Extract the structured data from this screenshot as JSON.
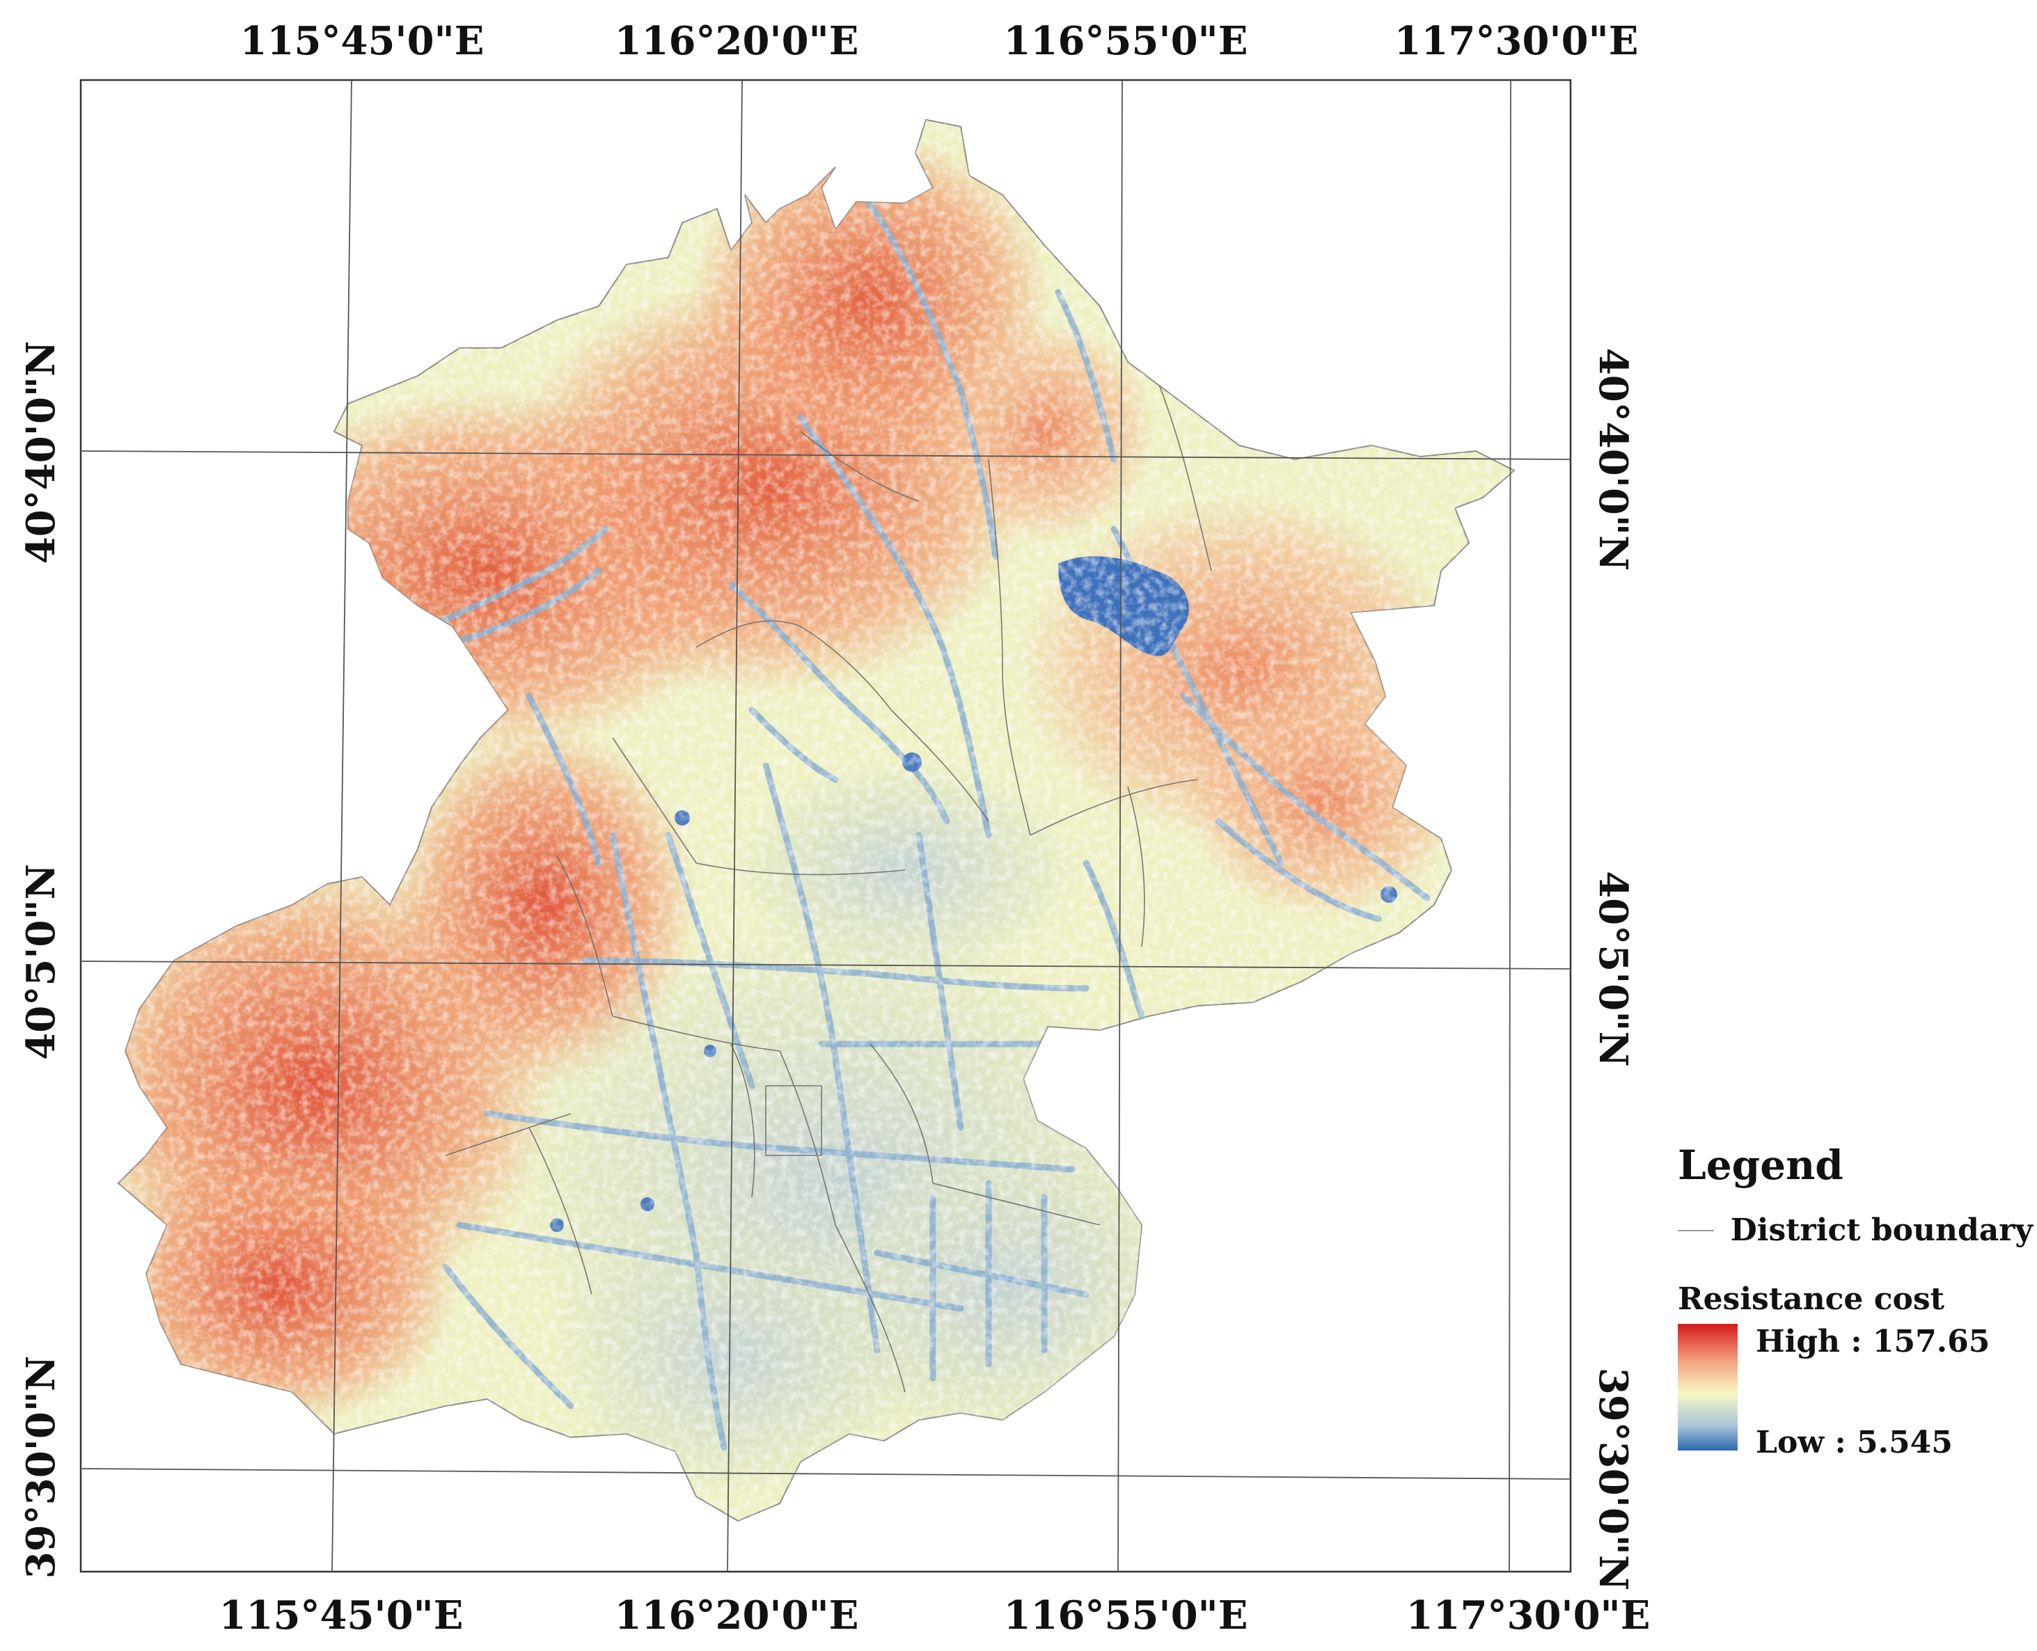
{
  "map": {
    "top_lon_labels": [
      "115°45'0\"E",
      "116°20'0\"E",
      "116°55'0\"E",
      "117°30'0\"E"
    ],
    "bottom_lon_labels": [
      "115°45'0\"E",
      "116°20'0\"E",
      "116°55'0\"E",
      "117°30'0\"E"
    ],
    "left_lat_labels": [
      "40°40'0\"N",
      "40°5'0\"N",
      "39°30'0\"N"
    ],
    "right_lat_labels": [
      "40°40'0\"N",
      "40°5'0\"N",
      "39°30'0\"N"
    ]
  },
  "legend": {
    "title": "Legend",
    "boundary_label": "District boundary",
    "cost_title": "Resistance cost",
    "high_label": "High : 157.65",
    "low_label": "Low : 5.545",
    "colors": {
      "high": "#d7191c",
      "mid_high": "#f4a582",
      "mid": "#f7f7c3",
      "mid_low": "#abc6d9",
      "low": "#2c6ab3"
    }
  }
}
